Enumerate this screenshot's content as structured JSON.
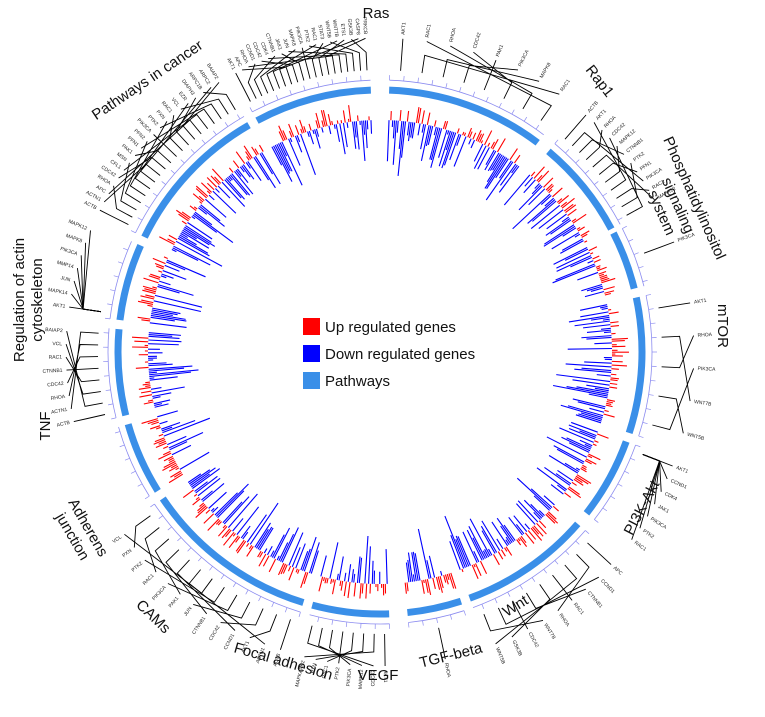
{
  "colors": {
    "up": "#ff0000",
    "down": "#0000ff",
    "pathway": "#3a8fe8",
    "tick": "#8c8cf0",
    "connector": "#000000"
  },
  "legend": {
    "position": "center",
    "items": [
      {
        "key": "up",
        "label": "Up regulated genes"
      },
      {
        "key": "down",
        "label": "Down regulated genes"
      },
      {
        "key": "pathway",
        "label": "Pathways"
      }
    ]
  },
  "chart_data": {
    "type": "circos",
    "title": "",
    "pathways": [
      {
        "name": "Ras",
        "lines": [
          "Ras"
        ],
        "genes": [
          "AKT1",
          "RAC1",
          "RHOA",
          "CDC42",
          "PAK1",
          "PIK3CA",
          "MAPK8",
          "RAC1"
        ]
      },
      {
        "name": "Rap1",
        "lines": [
          "Rap1"
        ],
        "genes": [
          "ACTB",
          "AKT1",
          "RHOA",
          "CDC42",
          "MAPK12",
          "CTNNB1",
          "PTK2",
          "PFN1",
          "PIK3CA",
          "RAC1",
          "MAPK12"
        ]
      },
      {
        "name": "Phosphatidylinositol signaling system",
        "lines": [
          "Phosphatidylinositol",
          "signaling",
          "system"
        ],
        "genes": [
          "PIK3CA"
        ]
      },
      {
        "name": "mTOR",
        "lines": [
          "mTOR"
        ],
        "genes": [
          "AKT1",
          "RHOA",
          "PIK3CA",
          "WNT7B",
          "WNT5B"
        ]
      },
      {
        "name": "PI3K-Akt",
        "lines": [
          "PI3K-Akt"
        ],
        "genes": [
          "AKT1",
          "CCND1",
          "CDK4",
          "JAK1",
          "PIK3CA",
          "PTK2",
          "RAC1"
        ]
      },
      {
        "name": "Wnt",
        "lines": [
          "Wnt"
        ],
        "genes": [
          "APC",
          "CCND1",
          "CTNNB1",
          "RAC1",
          "RHOA",
          "WNT7B",
          "CDC42",
          "GSK3B",
          "WNT5B"
        ]
      },
      {
        "name": "TGF-beta",
        "lines": [
          "TGF-beta"
        ],
        "genes": [
          "RHOA"
        ]
      },
      {
        "name": "VEGF",
        "lines": [
          "VEGF"
        ],
        "genes": [
          "AKT1",
          "CDC42",
          "MAPK12",
          "PIK3CA",
          "PTK2",
          "RAC1",
          "PXN",
          "MAPKAPK2"
        ]
      },
      {
        "name": "Focal adhesion",
        "lines": [
          "Focal adhesion"
        ],
        "genes": [
          "ACTB",
          "ACTN1",
          "AKT1",
          "CCND1",
          "CDC42",
          "CTNNB1",
          "JUN",
          "PAK1",
          "PIK3CA",
          "RAC1",
          "PTK2",
          "PXN",
          "VCL"
        ]
      },
      {
        "name": "CAMs",
        "lines": [
          "CAMs"
        ],
        "genes": []
      },
      {
        "name": "Adherens junction",
        "lines": [
          "Adherens",
          "junction"
        ],
        "genes": [
          "ACTB",
          "ACTN1",
          "RHOA",
          "CDC42",
          "CTNNB1",
          "RAC1",
          "VCL",
          "BAIAP2"
        ]
      },
      {
        "name": "TNF",
        "lines": [
          "TNF"
        ],
        "genes": [
          "AKT1",
          "MAPK14",
          "JUN",
          "MMP14",
          "PIK3CA",
          "MAPK8",
          "MAPK12"
        ]
      },
      {
        "name": "Regulation of actin cytoskeleton",
        "lines": [
          "Regulation of actin",
          "cytoskeleton"
        ],
        "genes": [
          "ACTB",
          "ACTN1",
          "APC",
          "RHOA",
          "CDC42",
          "CFL1",
          "MSN",
          "PAK1",
          "PFN1",
          "PFN2",
          "PIK3CA",
          "PTK2",
          "PXN",
          "RAC1",
          "VCL",
          "EZR",
          "DIAPH3",
          "ARPC1B",
          "ARPC2",
          "BAIAP2"
        ]
      },
      {
        "name": "Pathways in cancer",
        "lines": [
          "Pathways in cancer"
        ],
        "genes": [
          "AKT1",
          "APC",
          "RHOA",
          "CCND1",
          "CDC42",
          "CDK4",
          "CTNNB1",
          "JAK1",
          "JUN",
          "MAPK8",
          "PIK3CA",
          "PTK2",
          "RAC1",
          "STAT3",
          "WNT5B",
          "WNT7B",
          "ETS1",
          "GSK3B",
          "CASP8",
          "PRKCB"
        ]
      }
    ],
    "legend_position": "center"
  }
}
